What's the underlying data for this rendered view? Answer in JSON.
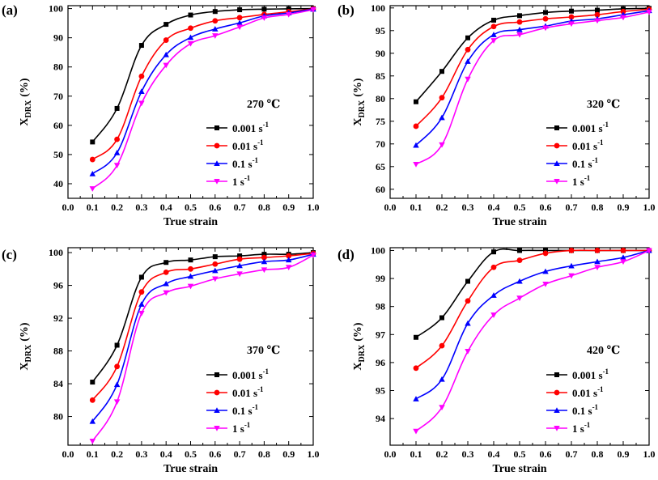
{
  "chart_data": [
    {
      "type": "line",
      "panel_label": "(a)",
      "temperature_label": "270 ℃",
      "xlabel": "True strain",
      "ylabel_main": "X",
      "ylabel_sub": "DRX",
      "ylabel_unit": "(%)",
      "xlim": [
        0.0,
        1.0
      ],
      "ylim": [
        35,
        101
      ],
      "xticks": [
        "0.0",
        "0.1",
        "0.2",
        "0.3",
        "0.4",
        "0.5",
        "0.6",
        "0.7",
        "0.8",
        "0.9",
        "1.0"
      ],
      "yticks": [
        "40",
        "50",
        "60",
        "70",
        "80",
        "90",
        "100"
      ],
      "ytick_values": [
        40,
        50,
        60,
        70,
        80,
        90,
        100
      ],
      "x": [
        0.1,
        0.2,
        0.3,
        0.4,
        0.5,
        0.6,
        0.7,
        0.8,
        0.9,
        1.0
      ],
      "series": [
        {
          "name": "0.001 s",
          "unit_exp": "-1",
          "color": "#000000",
          "marker": "square",
          "values": [
            54.3,
            65.8,
            87.4,
            94.6,
            97.8,
            99.0,
            99.6,
            99.8,
            99.9,
            100.0
          ]
        },
        {
          "name": "0.01 s",
          "unit_exp": "-1",
          "color": "#ff0000",
          "marker": "circle",
          "values": [
            48.3,
            55.2,
            76.8,
            89.2,
            93.3,
            95.8,
            96.9,
            98.0,
            98.9,
            99.9
          ]
        },
        {
          "name": "0.1 s",
          "unit_exp": "-1",
          "color": "#0000ff",
          "marker": "triangle-up",
          "values": [
            43.4,
            50.6,
            71.6,
            84.2,
            90.1,
            93.0,
            95.1,
            97.5,
            98.5,
            99.8
          ]
        },
        {
          "name": "1 s",
          "unit_exp": "-1",
          "color": "#ff00ff",
          "marker": "triangle-down",
          "values": [
            38.3,
            46.3,
            67.6,
            80.6,
            88.0,
            90.7,
            93.7,
            96.8,
            98.0,
            99.6
          ]
        }
      ]
    },
    {
      "type": "line",
      "panel_label": "(b)",
      "temperature_label": "320 ℃",
      "xlabel": "True strain",
      "ylabel_main": "X",
      "ylabel_sub": "DRX",
      "ylabel_unit": "(%)",
      "xlim": [
        0.0,
        1.0
      ],
      "ylim": [
        58,
        100.5
      ],
      "xticks": [
        "0.0",
        "0.1",
        "0.2",
        "0.3",
        "0.4",
        "0.5",
        "0.6",
        "0.7",
        "0.8",
        "0.9",
        "1.0"
      ],
      "yticks": [
        "60",
        "65",
        "70",
        "75",
        "80",
        "85",
        "90",
        "95",
        "100"
      ],
      "ytick_values": [
        60,
        65,
        70,
        75,
        80,
        85,
        90,
        95,
        100
      ],
      "x": [
        0.1,
        0.2,
        0.3,
        0.4,
        0.5,
        0.6,
        0.7,
        0.8,
        0.9,
        1.0
      ],
      "series": [
        {
          "name": "0.001 s",
          "unit_exp": "-1",
          "color": "#000000",
          "marker": "square",
          "values": [
            79.3,
            86.0,
            93.4,
            97.3,
            98.3,
            99.0,
            99.3,
            99.5,
            99.8,
            99.9
          ]
        },
        {
          "name": "0.01 s",
          "unit_exp": "-1",
          "color": "#ff0000",
          "marker": "circle",
          "values": [
            73.9,
            80.2,
            90.8,
            95.9,
            96.9,
            97.6,
            98.0,
            98.5,
            99.2,
            99.7
          ]
        },
        {
          "name": "0.1 s",
          "unit_exp": "-1",
          "color": "#0000ff",
          "marker": "triangle-up",
          "values": [
            69.7,
            75.8,
            88.2,
            94.1,
            95.2,
            96.0,
            97.1,
            97.6,
            98.5,
            99.4
          ]
        },
        {
          "name": "1 s",
          "unit_exp": "-1",
          "color": "#ff00ff",
          "marker": "triangle-down",
          "values": [
            65.5,
            69.8,
            84.3,
            92.8,
            94.1,
            95.6,
            96.5,
            97.2,
            97.9,
            99.1
          ]
        }
      ]
    },
    {
      "type": "line",
      "panel_label": "(c)",
      "temperature_label": "370 ℃",
      "xlabel": "True strain",
      "ylabel_main": "X",
      "ylabel_sub": "DRX",
      "ylabel_unit": "(%)",
      "xlim": [
        0.0,
        1.0
      ],
      "ylim": [
        76.5,
        100.6
      ],
      "xticks": [
        "0.0",
        "0.1",
        "0.2",
        "0.3",
        "0.4",
        "0.5",
        "0.6",
        "0.7",
        "0.8",
        "0.9",
        "1.0"
      ],
      "yticks": [
        "80",
        "84",
        "88",
        "92",
        "96",
        "100"
      ],
      "ytick_values": [
        80,
        84,
        88,
        92,
        96,
        100
      ],
      "x": [
        0.1,
        0.2,
        0.3,
        0.4,
        0.5,
        0.6,
        0.7,
        0.8,
        0.9,
        1.0
      ],
      "series": [
        {
          "name": "0.001 s",
          "unit_exp": "-1",
          "color": "#000000",
          "marker": "square",
          "values": [
            84.2,
            88.7,
            97.0,
            98.8,
            99.1,
            99.5,
            99.6,
            99.8,
            99.8,
            100.0
          ]
        },
        {
          "name": "0.01 s",
          "unit_exp": "-1",
          "color": "#ff0000",
          "marker": "circle",
          "values": [
            82.0,
            86.1,
            95.2,
            97.6,
            98.0,
            98.6,
            99.2,
            99.4,
            99.6,
            99.9
          ]
        },
        {
          "name": "0.1 s",
          "unit_exp": "-1",
          "color": "#0000ff",
          "marker": "triangle-up",
          "values": [
            79.4,
            83.9,
            93.7,
            96.2,
            97.1,
            97.8,
            98.4,
            98.9,
            99.1,
            99.8
          ]
        },
        {
          "name": "1 s",
          "unit_exp": "-1",
          "color": "#ff00ff",
          "marker": "triangle-down",
          "values": [
            77.0,
            81.8,
            92.6,
            95.1,
            95.9,
            96.8,
            97.4,
            97.9,
            98.2,
            99.7
          ]
        }
      ]
    },
    {
      "type": "line",
      "panel_label": "(d)",
      "temperature_label": "420 ℃",
      "xlabel": "True strain",
      "ylabel_main": "X",
      "ylabel_sub": "DRX",
      "ylabel_unit": "(%)",
      "xlim": [
        0.0,
        1.0
      ],
      "ylim": [
        93.05,
        100.1
      ],
      "xticks": [
        "0.0",
        "0.1",
        "0.2",
        "0.3",
        "0.4",
        "0.5",
        "0.6",
        "0.7",
        "0.8",
        "0.9",
        "1.0"
      ],
      "yticks": [
        "94",
        "95",
        "96",
        "97",
        "98",
        "99",
        "100"
      ],
      "ytick_values": [
        94,
        95,
        96,
        97,
        98,
        99,
        100
      ],
      "x": [
        0.1,
        0.2,
        0.3,
        0.4,
        0.5,
        0.6,
        0.7,
        0.8,
        0.9,
        1.0
      ],
      "series": [
        {
          "name": "0.001 s",
          "unit_exp": "-1",
          "color": "#000000",
          "marker": "square",
          "values": [
            96.9,
            97.6,
            98.9,
            99.95,
            100.0,
            100.0,
            100.0,
            100.0,
            100.0,
            100.0
          ]
        },
        {
          "name": "0.01 s",
          "unit_exp": "-1",
          "color": "#ff0000",
          "marker": "circle",
          "values": [
            95.8,
            96.6,
            98.2,
            99.4,
            99.65,
            99.9,
            100.0,
            100.0,
            100.0,
            100.0
          ]
        },
        {
          "name": "0.1 s",
          "unit_exp": "-1",
          "color": "#0000ff",
          "marker": "triangle-up",
          "values": [
            94.7,
            95.4,
            97.4,
            98.4,
            98.9,
            99.25,
            99.45,
            99.6,
            99.75,
            100.0
          ]
        },
        {
          "name": "1 s",
          "unit_exp": "-1",
          "color": "#ff00ff",
          "marker": "triangle-down",
          "values": [
            93.55,
            94.4,
            96.4,
            97.7,
            98.3,
            98.8,
            99.1,
            99.4,
            99.6,
            100.0
          ]
        }
      ]
    }
  ]
}
